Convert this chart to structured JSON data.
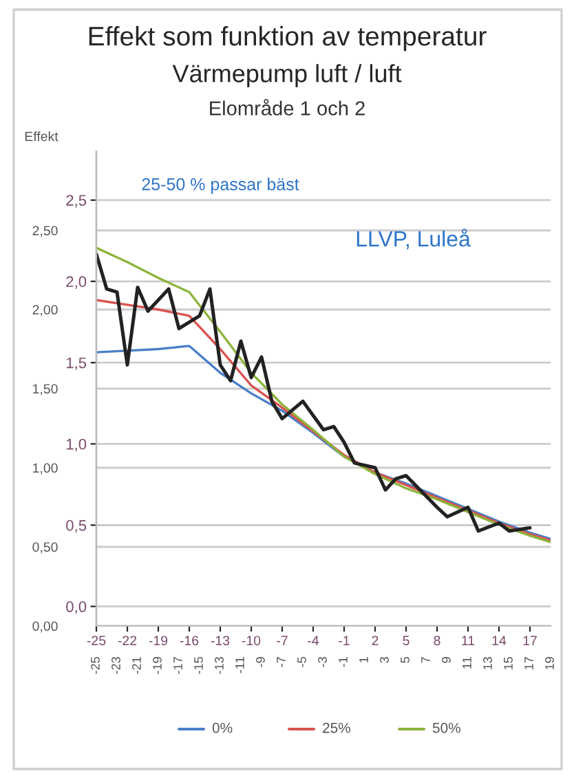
{
  "chart_data": {
    "type": "line",
    "title": "Effekt som funktion av temperatur",
    "subtitle": "Värmepump luft / luft",
    "ylabel": "Effekt",
    "annotations": [
      "Elområde 1 och 2",
      "25-50 % passar bäst",
      "LLVP, Luleå"
    ],
    "series": [
      {
        "name": "0%",
        "color": "#4a7fc8",
        "x": [
          -25,
          -22,
          -19,
          -16,
          -13,
          -10,
          -7,
          -4,
          -1,
          2,
          5,
          8,
          11,
          14,
          17,
          19
        ],
        "values": [
          1.73,
          1.74,
          1.75,
          1.77,
          1.6,
          1.47,
          1.36,
          1.22,
          1.07,
          0.97,
          0.9,
          0.82,
          0.74,
          0.66,
          0.59,
          0.55
        ]
      },
      {
        "name": "25%",
        "color": "#d9534f",
        "x": [
          -25,
          -22,
          -19,
          -16,
          -13,
          -10,
          -7,
          -4,
          -1,
          2,
          5,
          8,
          11,
          14,
          17,
          19
        ],
        "values": [
          2.06,
          2.03,
          2.0,
          1.96,
          1.75,
          1.52,
          1.38,
          1.23,
          1.08,
          0.97,
          0.89,
          0.81,
          0.73,
          0.65,
          0.58,
          0.54
        ]
      },
      {
        "name": "50%",
        "color": "#8db43c",
        "x": [
          -25,
          -22,
          -19,
          -16,
          -13,
          -10,
          -7,
          -4,
          -1,
          2,
          5,
          8,
          11,
          14,
          17,
          19
        ],
        "values": [
          2.39,
          2.3,
          2.2,
          2.11,
          1.86,
          1.6,
          1.4,
          1.24,
          1.07,
          0.96,
          0.87,
          0.8,
          0.72,
          0.64,
          0.57,
          0.53
        ]
      },
      {
        "color": "#222222",
        "x": [
          -25,
          -24,
          -23,
          -22,
          -21,
          -20,
          -18,
          -17,
          -15,
          -14,
          -13,
          -12,
          -11,
          -10,
          -9,
          -8,
          -7,
          -5,
          -3,
          -2,
          -1,
          0,
          2,
          3,
          4,
          5,
          8,
          9,
          11,
          12,
          14,
          15,
          17
        ],
        "values": [
          2.35,
          2.13,
          2.11,
          1.65,
          2.14,
          1.99,
          2.13,
          1.88,
          1.96,
          2.13,
          1.65,
          1.55,
          1.8,
          1.57,
          1.7,
          1.42,
          1.31,
          1.42,
          1.24,
          1.26,
          1.16,
          1.03,
          1.0,
          0.86,
          0.93,
          0.95,
          0.75,
          0.69,
          0.75,
          0.6,
          0.65,
          0.6,
          0.62
        ]
      }
    ],
    "xlim": [
      -25,
      19
    ],
    "xticks": [
      -25,
      -23,
      -21,
      -19,
      -17,
      -15,
      -13,
      -11,
      -9,
      -7,
      -5,
      -3,
      -1,
      1,
      3,
      5,
      7,
      9,
      11,
      13,
      15,
      17,
      19
    ],
    "x2lim": [
      -25,
      19
    ],
    "x2ticks": [
      -25,
      -22,
      -19,
      -16,
      -13,
      -10,
      -7,
      -4,
      -1,
      2,
      5,
      8,
      11,
      14,
      17
    ],
    "ylim": [
      0,
      3.0
    ],
    "yticks": [
      {
        "value": 0,
        "label": "0,00"
      },
      {
        "value": 0.5,
        "label": "0,50"
      },
      {
        "value": 1.0,
        "label": "1,00"
      },
      {
        "value": 1.5,
        "label": "1,50"
      },
      {
        "value": 2.0,
        "label": "2,00"
      },
      {
        "value": 2.5,
        "label": "2,50"
      }
    ],
    "y2lim": [
      -0.12,
      2.8
    ],
    "y2ticks": [
      {
        "value": 0,
        "label": "0,0"
      },
      {
        "value": 0.5,
        "label": "0,5"
      },
      {
        "value": 1.0,
        "label": "1,0"
      },
      {
        "value": 1.5,
        "label": "1,5"
      },
      {
        "value": 2.0,
        "label": "2,0"
      },
      {
        "value": 2.5,
        "label": "2,5"
      }
    ],
    "grid": "y",
    "legend": "right",
    "marker": "none",
    "line_style": "solid"
  }
}
